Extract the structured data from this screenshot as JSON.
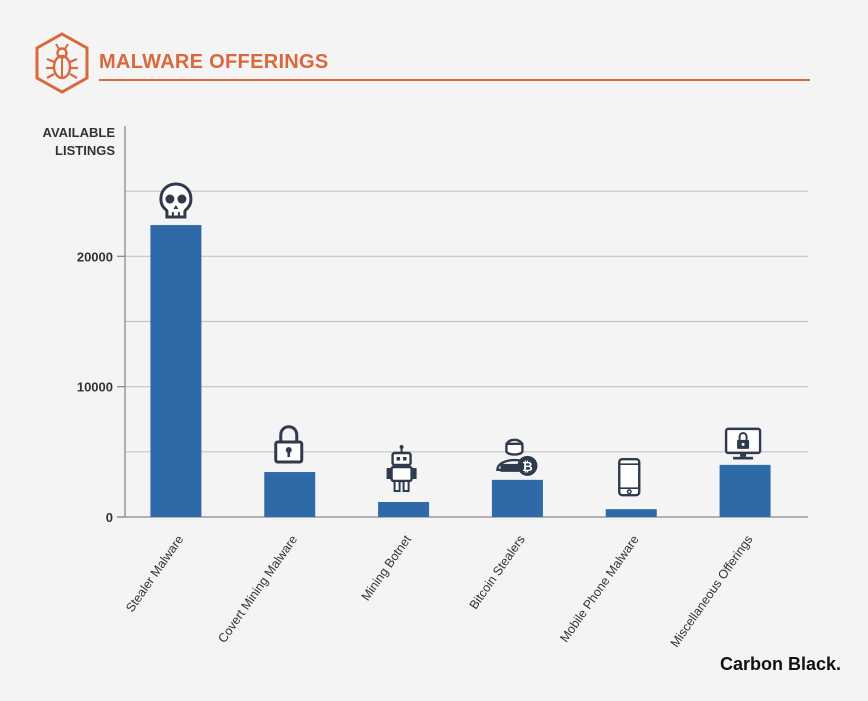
{
  "header": {
    "title": "MALWARE OFFERINGS",
    "icon": "bug-hexagon-icon",
    "accent_color": "#d9683d"
  },
  "brand": "Carbon Black.",
  "chart_data": {
    "type": "bar",
    "title": "MALWARE OFFERINGS",
    "ylabel_lines": [
      "AVAILABLE",
      "LISTINGS"
    ],
    "xlabel": "",
    "ylim": [
      0,
      30000
    ],
    "yticks": [
      0,
      10000,
      20000
    ],
    "ytick_labels": [
      "0",
      "10000",
      "20000"
    ],
    "gridlines": [
      5000,
      10000,
      15000,
      20000,
      25000
    ],
    "grid": true,
    "bar_color": "#2f6aa8",
    "categories": [
      "Stealer Malware",
      "Covert Mining Malware",
      "Mining Botnet",
      "Bitcoin Stealers",
      "Mobile Phone Malware",
      "Miscellaneous Offerings"
    ],
    "values": [
      22400,
      3450,
      1150,
      2850,
      600,
      4000
    ],
    "category_icons": [
      "skull-icon",
      "padlock-icon",
      "robot-icon",
      "hacker-bitcoin-icon",
      "smartphone-icon",
      "monitor-lock-icon"
    ]
  }
}
